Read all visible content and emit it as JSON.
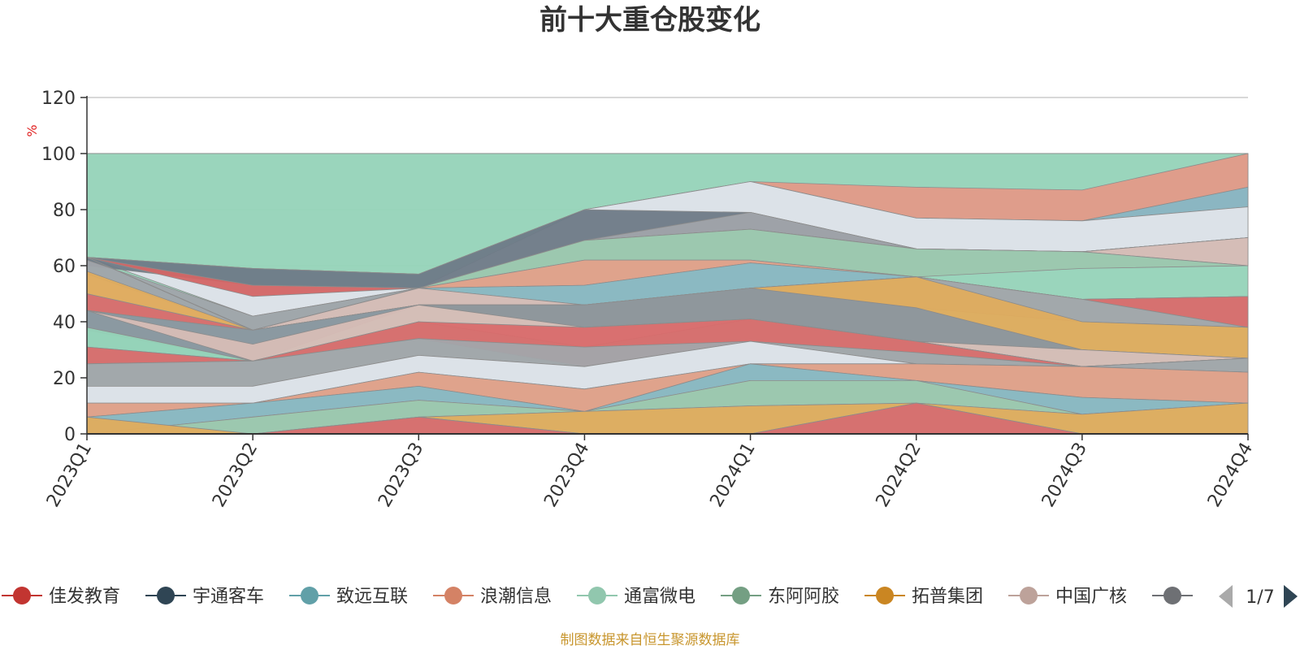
{
  "chart_data": {
    "type": "area",
    "title": "前十大重仓股变化",
    "ylabel": "%",
    "xlabel": "",
    "ylim": [
      0,
      120
    ],
    "yticks": [
      0,
      20,
      40,
      60,
      80,
      100,
      120
    ],
    "grid": true,
    "legend_position": "bottom",
    "categories": [
      "2023Q1",
      "2023Q2",
      "2023Q3",
      "2023Q4",
      "2024Q1",
      "2024Q2",
      "2024Q3",
      "2024Q4"
    ],
    "series": [
      {
        "color": "#95d3b8",
        "values": [
          [
            0,
            100
          ],
          [
            0,
            100
          ],
          [
            0,
            100
          ],
          [
            0,
            100
          ],
          [
            0,
            100
          ],
          [
            0,
            100
          ],
          [
            0,
            100
          ],
          [
            0,
            100
          ]
        ]
      },
      {
        "color": "#e39a88",
        "values": [
          [
            63,
            63
          ],
          [
            59,
            59
          ],
          [
            57,
            57
          ],
          [
            80,
            80
          ],
          [
            90,
            90
          ],
          [
            77,
            88
          ],
          [
            76,
            87
          ],
          [
            88,
            100
          ]
        ]
      },
      {
        "color": "#8ab4c2",
        "values": [
          [
            63,
            63
          ],
          [
            59,
            59
          ],
          [
            57,
            57
          ],
          [
            80,
            80
          ],
          [
            90,
            90
          ],
          [
            77,
            77
          ],
          [
            76,
            76
          ],
          [
            81,
            88
          ]
        ]
      },
      {
        "color": "#dfe3ea",
        "values": [
          [
            63,
            63
          ],
          [
            42,
            53
          ],
          [
            52,
            52
          ],
          [
            69,
            80
          ],
          [
            79,
            90
          ],
          [
            66,
            77
          ],
          [
            65,
            76
          ],
          [
            70,
            81
          ]
        ]
      },
      {
        "color": "#6e7a87",
        "values": [
          [
            60,
            63
          ],
          [
            53,
            59
          ],
          [
            52,
            57
          ],
          [
            69,
            80
          ],
          [
            73,
            79
          ],
          [
            66,
            66
          ],
          [
            65,
            65
          ],
          [
            70,
            70
          ]
        ]
      },
      {
        "color": "#d36565",
        "values": [
          [
            63,
            63
          ],
          [
            49,
            53
          ],
          [
            52,
            52
          ],
          [
            69,
            69
          ],
          [
            73,
            73
          ],
          [
            66,
            66
          ],
          [
            65,
            65
          ],
          [
            70,
            70
          ]
        ]
      },
      {
        "color": "#a0a4aa",
        "values": [
          [
            57,
            62
          ],
          [
            37,
            42
          ],
          [
            52,
            52
          ],
          [
            69,
            69
          ],
          [
            73,
            79
          ],
          [
            66,
            66
          ],
          [
            65,
            65
          ],
          [
            70,
            70
          ]
        ]
      },
      {
        "color": "#d8bcb6",
        "values": [
          [
            63,
            63
          ],
          [
            37,
            37
          ],
          [
            52,
            52
          ],
          [
            69,
            69
          ],
          [
            73,
            73
          ],
          [
            66,
            66
          ],
          [
            65,
            65
          ],
          [
            60,
            70
          ]
        ]
      },
      {
        "color": "#9cc7ae",
        "values": [
          [
            63,
            63
          ],
          [
            37,
            37
          ],
          [
            52,
            52
          ],
          [
            62,
            69
          ],
          [
            62,
            73
          ],
          [
            56,
            66
          ],
          [
            59,
            65
          ],
          [
            60,
            60
          ]
        ]
      },
      {
        "color": "#e3a089",
        "values": [
          [
            63,
            63
          ],
          [
            37,
            37
          ],
          [
            52,
            52
          ],
          [
            53,
            62
          ],
          [
            61,
            62
          ],
          [
            56,
            56
          ],
          [
            48,
            48
          ],
          [
            49,
            49
          ]
        ]
      },
      {
        "color": "#8ab7c2",
        "values": [
          [
            63,
            63
          ],
          [
            37,
            37
          ],
          [
            52,
            52
          ],
          [
            46,
            53
          ],
          [
            52,
            61
          ],
          [
            56,
            56
          ],
          [
            48,
            48
          ],
          [
            49,
            49
          ]
        ]
      },
      {
        "color": "#d7bcb6",
        "values": [
          [
            50,
            57
          ],
          [
            37,
            37
          ],
          [
            46,
            52
          ],
          [
            46,
            46
          ],
          [
            52,
            52
          ],
          [
            56,
            56
          ],
          [
            48,
            48
          ],
          [
            49,
            49
          ]
        ]
      },
      {
        "color": "#d96b6b",
        "values": [
          [
            44,
            50
          ],
          [
            37,
            37
          ],
          [
            46,
            46
          ],
          [
            46,
            46
          ],
          [
            52,
            52
          ],
          [
            56,
            56
          ],
          [
            48,
            48
          ],
          [
            38,
            49
          ]
        ]
      },
      {
        "color": "#a2a5aa",
        "values": [
          [
            44,
            44
          ],
          [
            37,
            37
          ],
          [
            46,
            46
          ],
          [
            46,
            46
          ],
          [
            52,
            52
          ],
          [
            45,
            56
          ],
          [
            40,
            48
          ],
          [
            38,
            38
          ]
        ]
      },
      {
        "color": "#e0ac5d",
        "values": [
          [
            50,
            58
          ],
          [
            37,
            37
          ],
          [
            46,
            46
          ],
          [
            38,
            46
          ],
          [
            41,
            52
          ],
          [
            33,
            56
          ],
          [
            30,
            40
          ],
          [
            27,
            38
          ]
        ]
      },
      {
        "color": "#8a969f",
        "values": [
          [
            37,
            44
          ],
          [
            26,
            37
          ],
          [
            46,
            46
          ],
          [
            38,
            46
          ],
          [
            41,
            52
          ],
          [
            33,
            45
          ],
          [
            30,
            30
          ],
          [
            27,
            27
          ]
        ]
      },
      {
        "color": "#d7bdb6",
        "values": [
          [
            44,
            44
          ],
          [
            26,
            32
          ],
          [
            40,
            46
          ],
          [
            31,
            38
          ],
          [
            41,
            41
          ],
          [
            33,
            33
          ],
          [
            24,
            30
          ],
          [
            27,
            27
          ]
        ]
      },
      {
        "color": "#95d3b8",
        "values": [
          [
            31,
            38
          ],
          [
            26,
            26
          ],
          [
            40,
            40
          ],
          [
            31,
            31
          ],
          [
            41,
            41
          ],
          [
            33,
            33
          ],
          [
            24,
            24
          ],
          [
            27,
            27
          ]
        ]
      },
      {
        "color": "#d96b6b",
        "values": [
          [
            25,
            31
          ],
          [
            26,
            26
          ],
          [
            34,
            40
          ],
          [
            24,
            38
          ],
          [
            33,
            41
          ],
          [
            29,
            33
          ],
          [
            24,
            24
          ],
          [
            27,
            27
          ]
        ]
      },
      {
        "color": "#a2a5aa",
        "values": [
          [
            17,
            25
          ],
          [
            17,
            26
          ],
          [
            28,
            34
          ],
          [
            24,
            31
          ],
          [
            33,
            33
          ],
          [
            25,
            29
          ],
          [
            24,
            24
          ],
          [
            22,
            27
          ]
        ]
      },
      {
        "color": "#dfe3ea",
        "values": [
          [
            11,
            17
          ],
          [
            11,
            17
          ],
          [
            22,
            28
          ],
          [
            16,
            24
          ],
          [
            25,
            33
          ],
          [
            25,
            25
          ],
          [
            24,
            24
          ],
          [
            22,
            22
          ]
        ]
      },
      {
        "color": "#e3a089",
        "values": [
          [
            6,
            11
          ],
          [
            11,
            11
          ],
          [
            17,
            22
          ],
          [
            8,
            16
          ],
          [
            25,
            25
          ],
          [
            19,
            25
          ],
          [
            13,
            24
          ],
          [
            11,
            22
          ]
        ]
      },
      {
        "color": "#8ab7c2",
        "values": [
          [
            0,
            6
          ],
          [
            6,
            11
          ],
          [
            12,
            17
          ],
          [
            8,
            8
          ],
          [
            19,
            25
          ],
          [
            19,
            19
          ],
          [
            7,
            13
          ],
          [
            11,
            11
          ]
        ]
      },
      {
        "color": "#9cc7ae",
        "values": [
          [
            0,
            0
          ],
          [
            0,
            6
          ],
          [
            6,
            12
          ],
          [
            8,
            8
          ],
          [
            10,
            19
          ],
          [
            11,
            19
          ],
          [
            7,
            7
          ],
          [
            11,
            11
          ]
        ]
      },
      {
        "color": "#e0ac5d",
        "values": [
          [
            0,
            6
          ],
          [
            0,
            0
          ],
          [
            6,
            6
          ],
          [
            0,
            8
          ],
          [
            0,
            10
          ],
          [
            11,
            11
          ],
          [
            0,
            7
          ],
          [
            0,
            11
          ]
        ]
      },
      {
        "color": "#d96b6b",
        "values": [
          [
            0,
            0
          ],
          [
            0,
            0
          ],
          [
            0,
            6
          ],
          [
            0,
            0
          ],
          [
            0,
            0
          ],
          [
            0,
            11
          ],
          [
            0,
            0
          ],
          [
            0,
            0
          ]
        ]
      }
    ],
    "legend": [
      {
        "name": "佳发教育",
        "color": "#c23531"
      },
      {
        "name": "宇通客车",
        "color": "#2f4554"
      },
      {
        "name": "致远互联",
        "color": "#61a0a8"
      },
      {
        "name": "浪潮信息",
        "color": "#d48265"
      },
      {
        "name": "通富微电",
        "color": "#91c7ae"
      },
      {
        "name": "东阿阿胶",
        "color": "#749f83"
      },
      {
        "name": "拓普集团",
        "color": "#ca8622"
      },
      {
        "name": "中国广核",
        "color": "#bda29a"
      },
      {
        "name": "",
        "color": "#6e7074"
      }
    ],
    "legend_page": "1/7",
    "source": "制图数据来自恒生聚源数据库"
  }
}
